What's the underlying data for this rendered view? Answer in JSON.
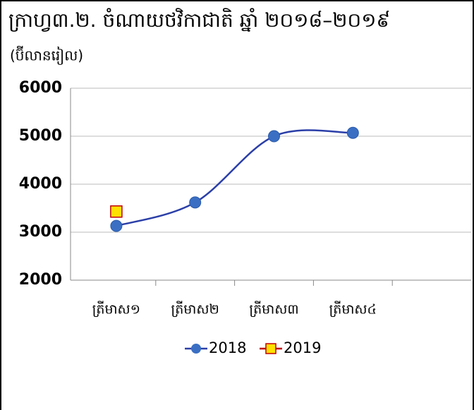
{
  "chart_data": {
    "type": "line",
    "title": "ក្រាហ្វ៣.២. ចំណាយថវិកាជាតិ ឆ្នាំ ២០១៨–២០១៩",
    "subtitle": "(ប៊ីលានរៀល)",
    "categories": [
      "ត្រីមាស១",
      "ត្រីមាស២",
      "ត្រីមាស៣",
      "ត្រីមាស៤",
      null
    ],
    "series": [
      {
        "name": "2018",
        "color": "#3a6fc4",
        "values": [
          3130,
          3620,
          5000,
          5070,
          null
        ]
      },
      {
        "name": "2019",
        "color": "#ffe000",
        "values": [
          3430,
          null,
          null,
          null,
          null
        ]
      }
    ],
    "ylim": [
      2000,
      6000
    ],
    "yticks": [
      2000,
      3000,
      4000,
      5000,
      6000
    ],
    "grid": true,
    "legend": "bottom"
  }
}
